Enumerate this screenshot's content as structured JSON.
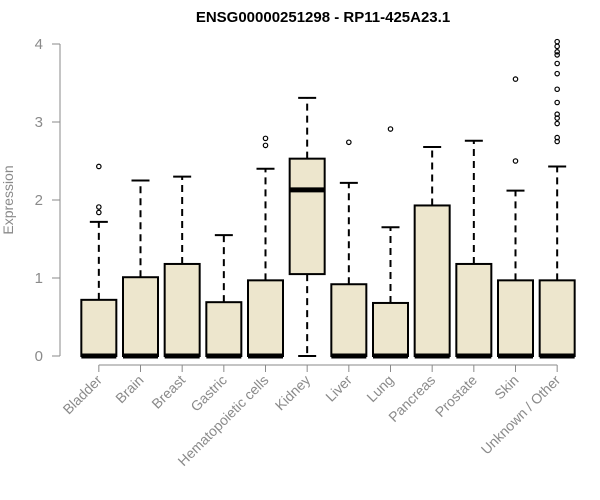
{
  "chart_data": {
    "type": "box",
    "title": "ENSG00000251298 - RP11-425A23.1",
    "xlabel": "",
    "ylabel": "Expression",
    "ylim": [
      0,
      4.1
    ],
    "yticks": [
      0,
      1,
      2,
      3,
      4
    ],
    "categories": [
      "Bladder",
      "Brain",
      "Breast",
      "Gastric",
      "Hematopoietic cells",
      "Kidney",
      "Liver",
      "Lung",
      "Pancreas",
      "Prostate",
      "Skin",
      "Unknown / Other"
    ],
    "boxes": [
      {
        "q1": 0,
        "median": 0,
        "q3": 0.72,
        "whisker_low": 0,
        "whisker_high": 1.72,
        "outliers": [
          1.84,
          1.91,
          2.43
        ]
      },
      {
        "q1": 0,
        "median": 0,
        "q3": 1.01,
        "whisker_low": 0,
        "whisker_high": 2.25,
        "outliers": []
      },
      {
        "q1": 0,
        "median": 0,
        "q3": 1.18,
        "whisker_low": 0,
        "whisker_high": 2.3,
        "outliers": []
      },
      {
        "q1": 0,
        "median": 0,
        "q3": 0.69,
        "whisker_low": 0,
        "whisker_high": 1.55,
        "outliers": []
      },
      {
        "q1": 0,
        "median": 0,
        "q3": 0.97,
        "whisker_low": 0,
        "whisker_high": 2.4,
        "outliers": [
          2.7,
          2.79
        ]
      },
      {
        "q1": 1.05,
        "median": 2.13,
        "q3": 2.53,
        "whisker_low": 0,
        "whisker_high": 3.31,
        "outliers": []
      },
      {
        "q1": 0,
        "median": 0,
        "q3": 0.92,
        "whisker_low": 0,
        "whisker_high": 2.22,
        "outliers": [
          2.74
        ]
      },
      {
        "q1": 0,
        "median": 0,
        "q3": 0.68,
        "whisker_low": 0,
        "whisker_high": 1.65,
        "outliers": [
          2.91
        ]
      },
      {
        "q1": 0,
        "median": 0,
        "q3": 1.93,
        "whisker_low": 0,
        "whisker_high": 2.68,
        "outliers": []
      },
      {
        "q1": 0,
        "median": 0,
        "q3": 1.18,
        "whisker_low": 0,
        "whisker_high": 2.76,
        "outliers": []
      },
      {
        "q1": 0,
        "median": 0,
        "q3": 0.97,
        "whisker_low": 0,
        "whisker_high": 2.12,
        "outliers": [
          2.5,
          3.55
        ]
      },
      {
        "q1": 0,
        "median": 0,
        "q3": 0.97,
        "whisker_low": 0,
        "whisker_high": 2.43,
        "outliers": [
          2.75,
          2.8,
          2.98,
          3.05,
          3.1,
          3.25,
          3.42,
          3.62,
          3.75,
          3.86,
          3.9,
          3.97,
          4.03
        ]
      }
    ],
    "grid": false,
    "legend": "none",
    "colors": {
      "box_fill": "#ede6cd",
      "box_stroke": "#000000",
      "axis": "#8a8a8a"
    }
  }
}
